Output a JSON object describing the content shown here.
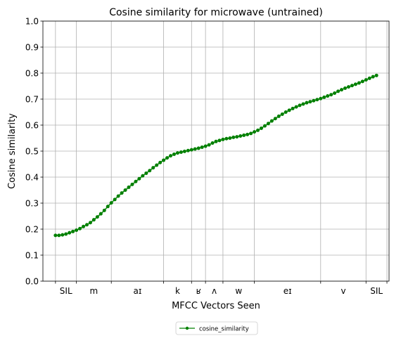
{
  "chart_data": {
    "type": "line",
    "title": "Cosine similarity for microwave (untrained)",
    "xlabel": "MFCC Vectors Seen",
    "ylabel": "Cosine similarity",
    "ylim": [
      0,
      1.0
    ],
    "yticks": [
      "0.0",
      "0.1",
      "0.2",
      "0.3",
      "0.4",
      "0.5",
      "0.6",
      "0.7",
      "0.8",
      "0.9",
      "1.0"
    ],
    "xlim": [
      -3.6,
      95.6
    ],
    "grid": true,
    "legend_position": "bottom-center",
    "segment_boundaries": [
      0,
      6,
      16,
      31,
      39,
      43,
      48,
      57,
      76,
      89,
      95
    ],
    "segment_labels": [
      "SIL",
      "m",
      "aɪ",
      "k",
      "ʁ",
      "ʌ",
      "w",
      "eɪ",
      "v",
      "SIL"
    ],
    "series": [
      {
        "name": "cosine_similarity",
        "color": "#008000",
        "marker": "circle",
        "values": [
          0.176,
          0.176,
          0.178,
          0.181,
          0.186,
          0.191,
          0.196,
          0.202,
          0.21,
          0.217,
          0.225,
          0.236,
          0.247,
          0.259,
          0.272,
          0.287,
          0.301,
          0.314,
          0.327,
          0.339,
          0.35,
          0.361,
          0.372,
          0.383,
          0.394,
          0.405,
          0.415,
          0.425,
          0.436,
          0.446,
          0.456,
          0.465,
          0.474,
          0.482,
          0.488,
          0.493,
          0.496,
          0.499,
          0.502,
          0.505,
          0.508,
          0.511,
          0.515,
          0.519,
          0.524,
          0.531,
          0.537,
          0.541,
          0.545,
          0.548,
          0.55,
          0.553,
          0.555,
          0.558,
          0.561,
          0.564,
          0.568,
          0.574,
          0.58,
          0.588,
          0.597,
          0.606,
          0.616,
          0.625,
          0.634,
          0.642,
          0.65,
          0.657,
          0.664,
          0.67,
          0.676,
          0.681,
          0.686,
          0.69,
          0.694,
          0.698,
          0.702,
          0.707,
          0.712,
          0.717,
          0.723,
          0.73,
          0.736,
          0.742,
          0.747,
          0.752,
          0.757,
          0.762,
          0.768,
          0.774,
          0.78,
          0.786,
          0.791
        ]
      }
    ]
  }
}
